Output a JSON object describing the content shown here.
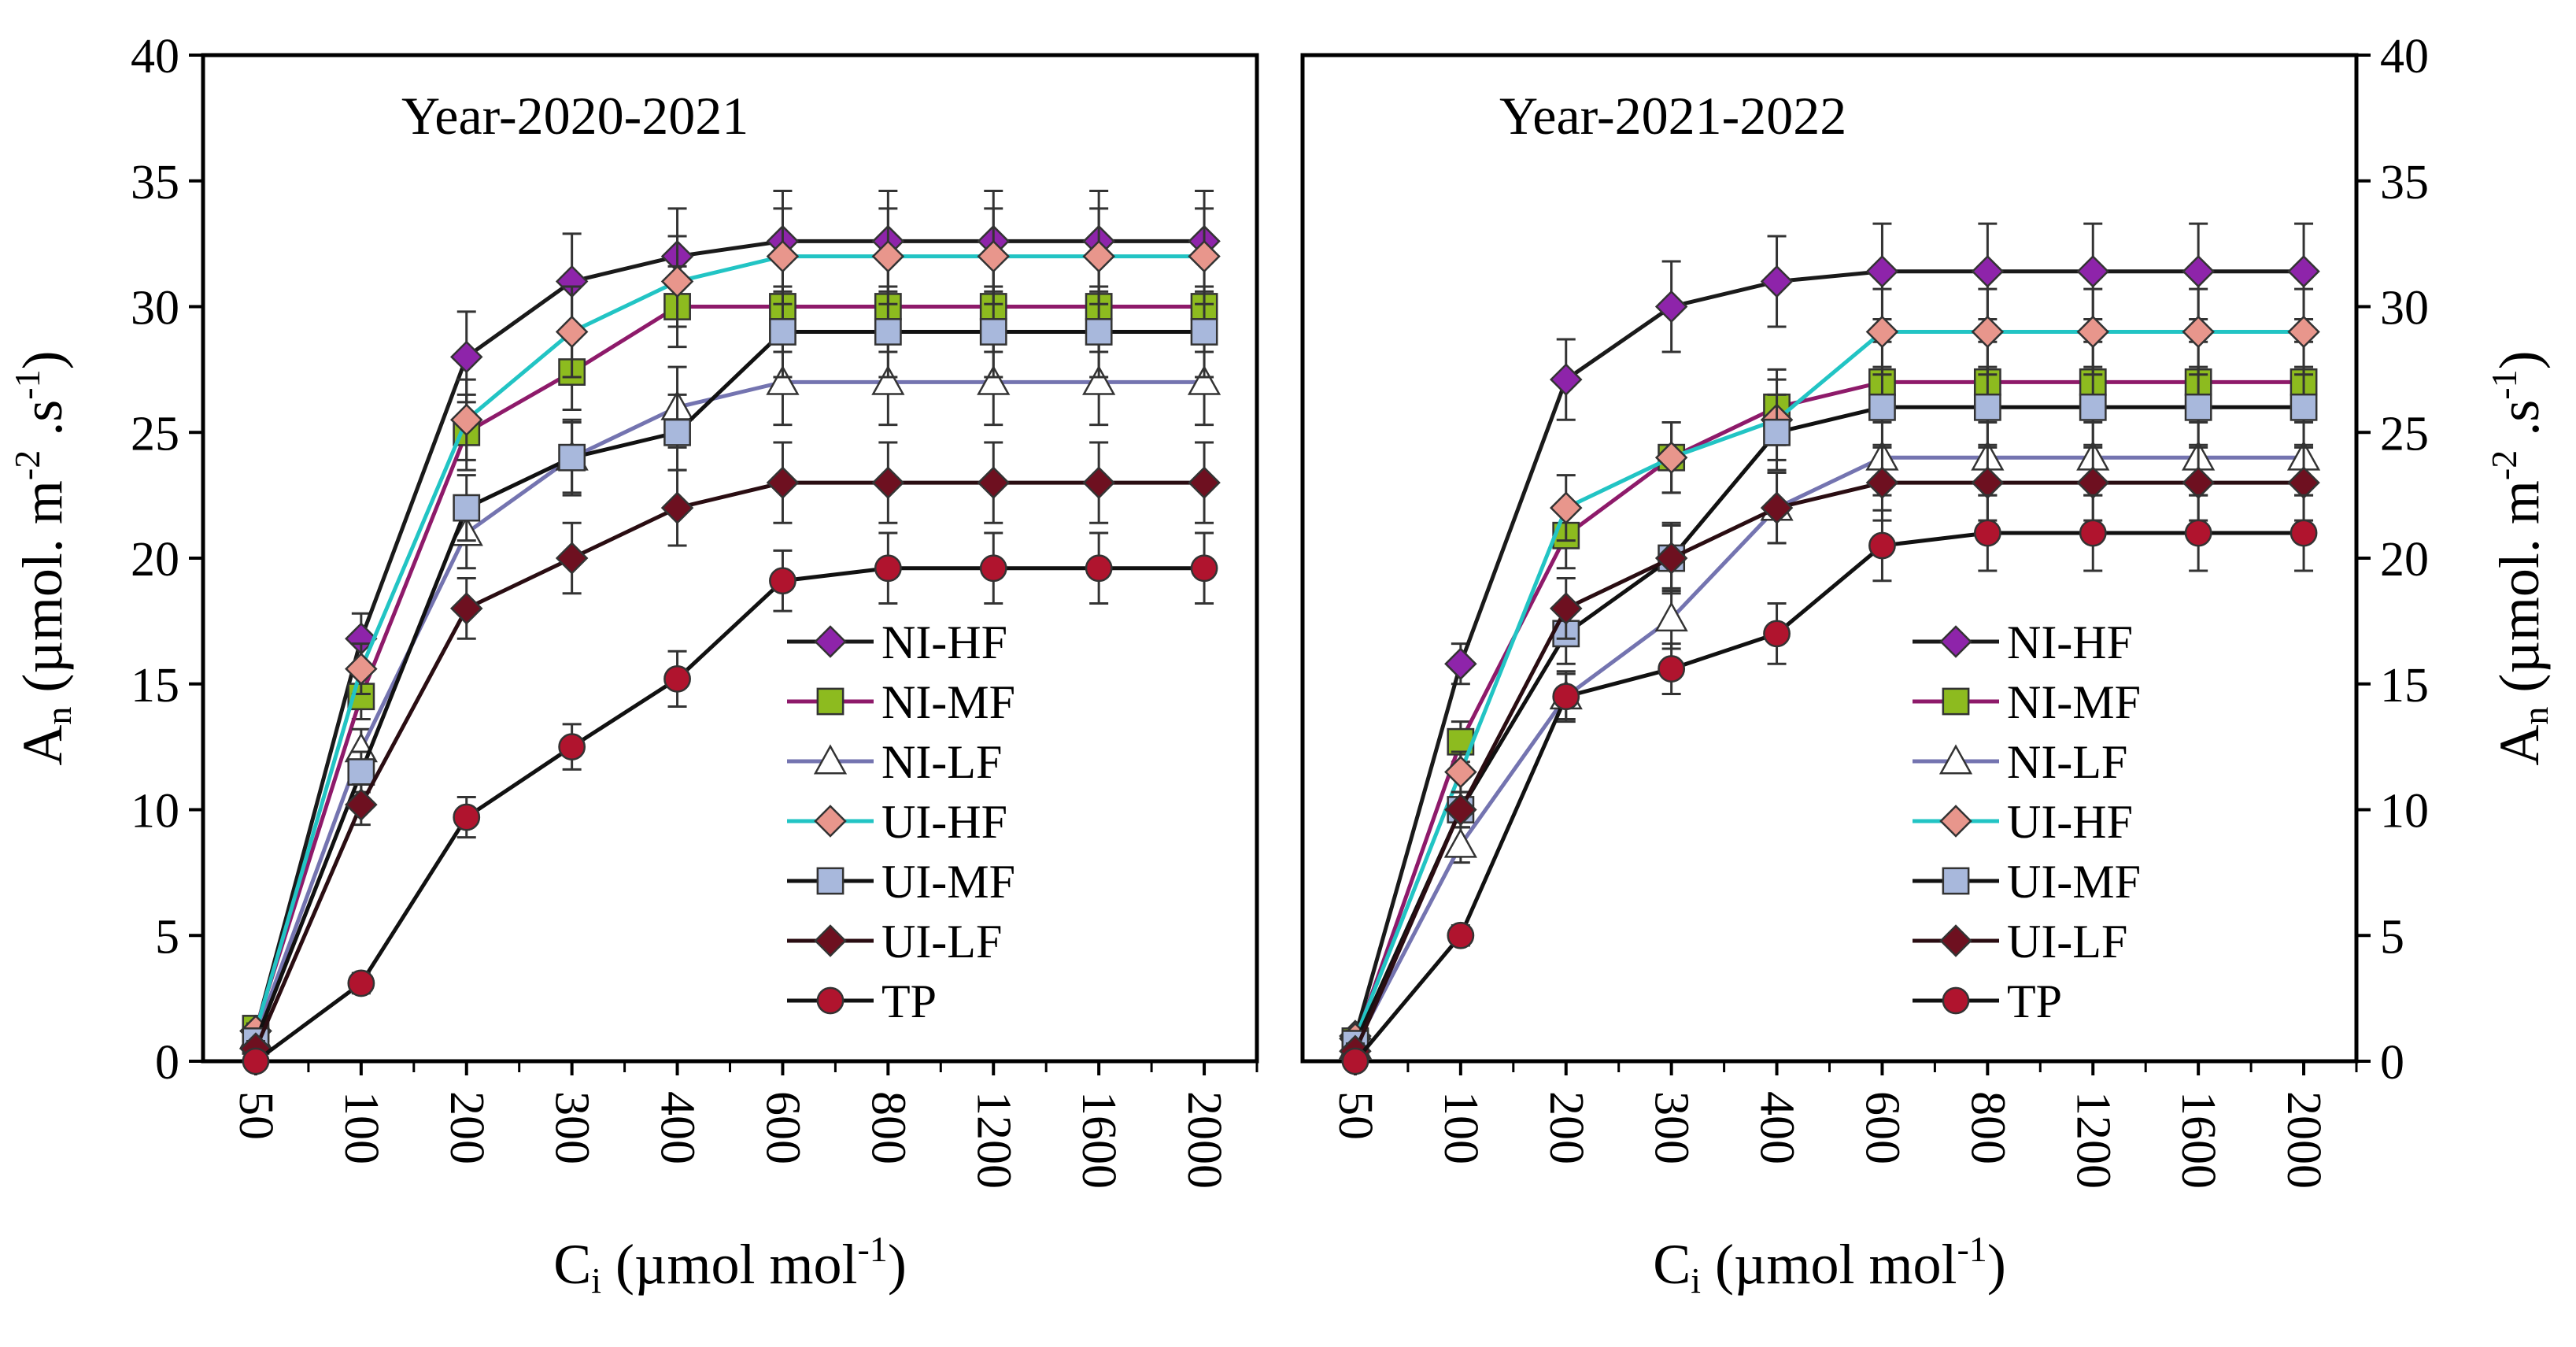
{
  "chart_data": [
    {
      "type": "line",
      "title": "Year-2020-2021",
      "xlabel": "Ci (µmol mol-1)",
      "xlabel_main": "C",
      "xlabel_sub": "i",
      "xlabel_rest": " (µmol mol",
      "xlabel_sup": "-1",
      "xlabel_end": ")",
      "ylabel": "An (µmol. m-2 .s-1)",
      "ylabel_main": "A",
      "ylabel_sub": "n",
      "ylabel_rest1": " (µmol. m",
      "ylabel_sup1": "-2",
      "ylabel_rest2": " .s",
      "ylabel_sup2": "-1",
      "ylabel_end": ")",
      "y_axis_side": "left",
      "ylim": [
        0,
        40
      ],
      "yticks": [
        "0",
        "5",
        "10",
        "15",
        "20",
        "25",
        "30",
        "35",
        "40"
      ],
      "categories": [
        "50",
        "100",
        "200",
        "300",
        "400",
        "600",
        "800",
        "1200",
        "1600",
        "2000"
      ],
      "legend_position": "center-right",
      "series": [
        {
          "name": "NI-HF",
          "values": [
            1.2,
            16.8,
            28.0,
            31.0,
            32.0,
            32.6,
            32.6,
            32.6,
            32.6,
            32.6
          ],
          "errors": [
            0.3,
            1.0,
            1.8,
            1.9,
            1.9,
            2.0,
            2.0,
            2.0,
            2.0,
            2.0
          ]
        },
        {
          "name": "NI-MF",
          "values": [
            1.3,
            14.5,
            25.0,
            27.4,
            30.0,
            30.0,
            30.0,
            30.0,
            30.0,
            30.0
          ],
          "errors": [
            0.3,
            0.9,
            1.5,
            1.5,
            1.6,
            1.8,
            1.8,
            1.8,
            1.8,
            1.8
          ]
        },
        {
          "name": "NI-LF",
          "values": [
            1.0,
            12.4,
            21.0,
            24.0,
            26.0,
            27.0,
            27.0,
            27.0,
            27.0,
            27.0
          ],
          "errors": [
            0.3,
            0.8,
            1.4,
            1.5,
            1.6,
            1.7,
            1.7,
            1.7,
            1.7,
            1.7
          ]
        },
        {
          "name": "UI-HF",
          "values": [
            1.2,
            15.6,
            25.5,
            29.0,
            31.0,
            32.0,
            32.0,
            32.0,
            32.0,
            32.0
          ],
          "errors": [
            0.3,
            1.0,
            1.6,
            1.8,
            1.8,
            1.9,
            1.9,
            1.9,
            1.9,
            1.9
          ]
        },
        {
          "name": "UI-MF",
          "values": [
            0.8,
            11.5,
            22.0,
            24.0,
            25.0,
            29.0,
            29.0,
            29.0,
            29.0,
            29.0
          ],
          "errors": [
            0.3,
            0.8,
            1.3,
            1.4,
            1.5,
            1.8,
            1.8,
            1.8,
            1.8,
            1.8
          ]
        },
        {
          "name": "UI-LF",
          "values": [
            0.5,
            10.2,
            18.0,
            20.0,
            22.0,
            23.0,
            23.0,
            23.0,
            23.0,
            23.0
          ],
          "errors": [
            0.3,
            0.8,
            1.2,
            1.4,
            1.5,
            1.6,
            1.6,
            1.6,
            1.6,
            1.6
          ]
        },
        {
          "name": "TP",
          "values": [
            0.0,
            3.1,
            9.7,
            12.5,
            15.2,
            19.1,
            19.6,
            19.6,
            19.6,
            19.6
          ],
          "errors": [
            0.2,
            0.4,
            0.8,
            0.9,
            1.1,
            1.2,
            1.4,
            1.4,
            1.4,
            1.4
          ]
        }
      ]
    },
    {
      "type": "line",
      "title": "Year-2021-2022",
      "xlabel": "Ci (µmol mol-1)",
      "xlabel_main": "C",
      "xlabel_sub": "i",
      "xlabel_rest": " (µmol mol",
      "xlabel_sup": "-1",
      "xlabel_end": ")",
      "ylabel": "An (µmol. m-2 .s-1)",
      "ylabel_main": "A",
      "ylabel_sub": "n",
      "ylabel_rest1": " (µmol. m",
      "ylabel_sup1": "-2",
      "ylabel_rest2": " .s",
      "ylabel_sup2": "-1",
      "ylabel_end": ")",
      "y_axis_side": "right",
      "ylim": [
        0,
        40
      ],
      "yticks": [
        "0",
        "5",
        "10",
        "15",
        "20",
        "25",
        "30",
        "35",
        "40"
      ],
      "categories": [
        "50",
        "100",
        "200",
        "300",
        "400",
        "600",
        "800",
        "1200",
        "1600",
        "2000"
      ],
      "legend_position": "center-right",
      "series": [
        {
          "name": "NI-HF",
          "values": [
            1.0,
            15.8,
            27.1,
            30.0,
            31.0,
            31.4,
            31.4,
            31.4,
            31.4,
            31.4
          ],
          "errors": [
            0.3,
            0.8,
            1.6,
            1.8,
            1.8,
            1.9,
            1.9,
            1.9,
            1.9,
            1.9
          ]
        },
        {
          "name": "NI-MF",
          "values": [
            0.8,
            12.7,
            20.9,
            24.0,
            26.0,
            27.0,
            27.0,
            27.0,
            27.0,
            27.0
          ],
          "errors": [
            0.3,
            0.8,
            1.3,
            1.4,
            1.5,
            1.6,
            1.6,
            1.6,
            1.6,
            1.6
          ]
        },
        {
          "name": "NI-LF",
          "values": [
            0.6,
            8.6,
            14.5,
            17.6,
            22.0,
            24.0,
            24.0,
            24.0,
            24.0,
            24.0
          ],
          "errors": [
            0.3,
            0.7,
            1.0,
            1.2,
            1.4,
            1.5,
            1.5,
            1.5,
            1.5,
            1.5
          ]
        },
        {
          "name": "UI-HF",
          "values": [
            0.9,
            11.5,
            22.0,
            24.0,
            25.5,
            29.0,
            29.0,
            29.0,
            29.0,
            29.0
          ],
          "errors": [
            0.3,
            0.8,
            1.3,
            1.4,
            1.6,
            1.7,
            1.7,
            1.7,
            1.7,
            1.7
          ]
        },
        {
          "name": "UI-MF",
          "values": [
            0.7,
            10.0,
            17.0,
            20.0,
            25.0,
            26.0,
            26.0,
            26.0,
            26.0,
            26.0
          ],
          "errors": [
            0.3,
            0.7,
            1.2,
            1.4,
            1.5,
            1.6,
            1.6,
            1.6,
            1.6,
            1.6
          ]
        },
        {
          "name": "UI-LF",
          "values": [
            0.4,
            10.0,
            18.0,
            20.0,
            22.0,
            23.0,
            23.0,
            23.0,
            23.0,
            23.0
          ],
          "errors": [
            0.3,
            0.7,
            1.2,
            1.3,
            1.4,
            1.5,
            1.5,
            1.5,
            1.5,
            1.5
          ]
        },
        {
          "name": "TP",
          "values": [
            0.0,
            5.0,
            14.5,
            15.6,
            17.0,
            20.5,
            21.0,
            21.0,
            21.0,
            21.0
          ],
          "errors": [
            0.2,
            0.4,
            0.9,
            1.0,
            1.2,
            1.4,
            1.5,
            1.5,
            1.5,
            1.5
          ]
        }
      ]
    }
  ],
  "styles": {
    "NI-HF": {
      "line": "#1a1a1a",
      "fill": "#8e24aa",
      "marker": "diamond"
    },
    "NI-MF": {
      "line": "#8e1a6a",
      "fill": "#8dbb1f",
      "marker": "square"
    },
    "NI-LF": {
      "line": "#7474b0",
      "fill": "#ffffff",
      "marker": "triangle"
    },
    "UI-HF": {
      "line": "#22c4c4",
      "fill": "#e8968c",
      "marker": "diamond"
    },
    "UI-MF": {
      "line": "#111111",
      "fill": "#a8b8dc",
      "marker": "square"
    },
    "UI-LF": {
      "line": "#2a0d12",
      "fill": "#6e1020",
      "marker": "diamond"
    },
    "TP": {
      "line": "#111111",
      "fill": "#b0142e",
      "marker": "circle"
    }
  }
}
